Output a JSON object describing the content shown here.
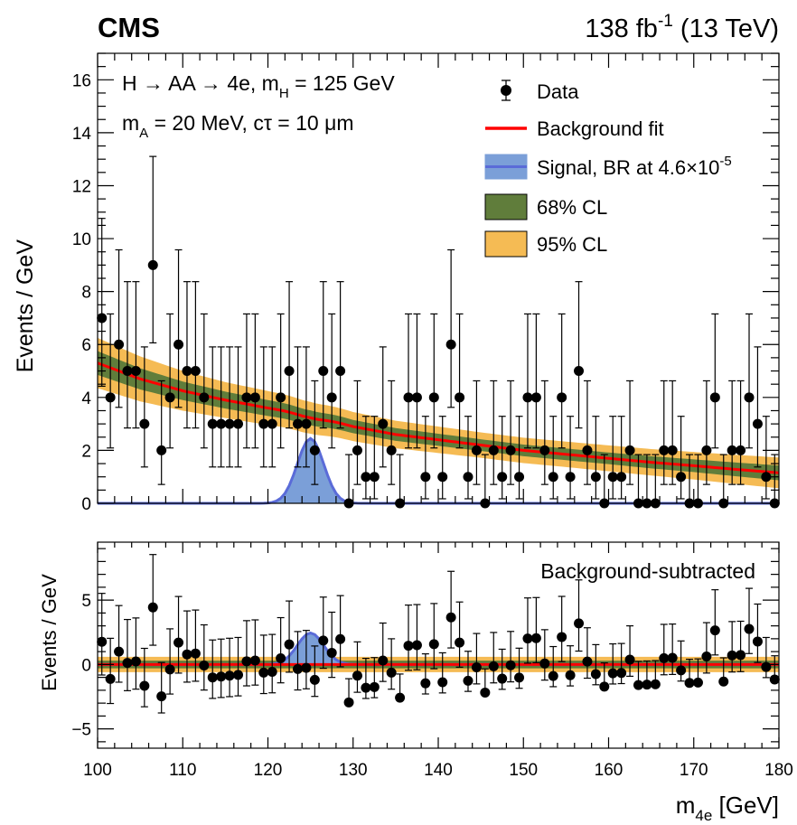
{
  "header": {
    "experiment": "CMS",
    "luminosity_main": "138 fb",
    "luminosity_sup": "-1",
    "energy": " (13 TeV)"
  },
  "annotations": {
    "process_main": "H → AA → 4e, m",
    "process_sub": "H",
    "process_tail": " = 125 GeV",
    "mass_main": "m",
    "mass_sub": "A",
    "mass_tail": " = 20 MeV, cτ = 10 μm"
  },
  "legend": {
    "data": "Data",
    "bkg": "Background fit",
    "signal_main": "Signal, BR at 4.6×10",
    "signal_sup": "-5",
    "cl68": "68% CL",
    "cl95": "95% CL"
  },
  "colors": {
    "data": "#000000",
    "background_fit": "#ff0000",
    "signal_line": "#5a6bd8",
    "signal_fill": "#7b9fd8",
    "cl68": "#607d3b",
    "cl95": "#f5bb54"
  },
  "chart_data": [
    {
      "type": "scatter",
      "panel": "main",
      "ylabel": "Events / GeV",
      "xlim": [
        100,
        180
      ],
      "ylim": [
        0,
        17
      ],
      "y_ticks": [
        0,
        2,
        4,
        6,
        8,
        10,
        12,
        14,
        16
      ],
      "x_ticks": [
        100,
        110,
        120,
        130,
        140,
        150,
        160,
        170,
        180
      ],
      "x_tick_labels_shown": false,
      "data": {
        "x": [
          100.5,
          101.5,
          102.5,
          103.5,
          104.5,
          105.5,
          106.5,
          107.5,
          108.5,
          109.5,
          110.5,
          111.5,
          112.5,
          113.5,
          114.5,
          115.5,
          116.5,
          117.5,
          118.5,
          119.5,
          120.5,
          121.5,
          122.5,
          123.5,
          124.5,
          125.5,
          126.5,
          127.5,
          128.5,
          129.5,
          130.5,
          131.5,
          132.5,
          133.5,
          134.5,
          135.5,
          136.5,
          137.5,
          138.5,
          139.5,
          140.5,
          141.5,
          142.5,
          143.5,
          144.5,
          145.5,
          146.5,
          147.5,
          148.5,
          149.5,
          150.5,
          151.5,
          152.5,
          153.5,
          154.5,
          155.5,
          156.5,
          157.5,
          158.5,
          159.5,
          160.5,
          161.5,
          162.5,
          163.5,
          164.5,
          165.5,
          166.5,
          167.5,
          168.5,
          169.5,
          170.5,
          171.5,
          172.5,
          173.5,
          174.5,
          175.5,
          176.5,
          177.5,
          178.5,
          179.5
        ],
        "y": [
          7,
          4,
          6,
          5,
          5,
          3,
          9,
          2,
          4,
          6,
          5,
          5,
          4,
          3,
          3,
          3,
          3,
          4,
          4,
          3,
          3,
          4,
          5,
          3,
          3,
          2,
          5,
          4,
          5,
          0,
          2,
          1,
          1,
          3,
          2,
          0,
          4,
          4,
          1,
          4,
          1,
          6,
          4,
          1,
          2,
          0,
          2,
          1,
          2,
          1,
          4,
          4,
          2,
          1,
          4,
          1,
          5,
          2,
          1,
          0,
          1,
          1,
          2,
          0,
          0,
          0,
          2,
          2,
          1,
          0,
          0,
          2,
          4,
          0,
          2,
          2,
          4,
          3,
          1,
          0
        ]
      },
      "background_fit": {
        "x": [
          100,
          105,
          110,
          115,
          120,
          125,
          130,
          135,
          140,
          145,
          150,
          155,
          160,
          165,
          170,
          175,
          180
        ],
        "y": [
          5.3,
          4.7,
          4.25,
          3.9,
          3.6,
          3.35,
          2.9,
          2.6,
          2.4,
          2.2,
          2.0,
          1.85,
          1.7,
          1.55,
          1.42,
          1.28,
          1.15
        ],
        "band68": [
          0.45,
          0.4,
          0.35,
          0.32,
          0.3,
          0.28,
          0.25,
          0.24,
          0.23,
          0.22,
          0.22,
          0.22,
          0.22,
          0.23,
          0.24,
          0.26,
          0.28
        ],
        "band95": [
          0.95,
          0.85,
          0.75,
          0.68,
          0.64,
          0.6,
          0.55,
          0.52,
          0.5,
          0.48,
          0.48,
          0.48,
          0.49,
          0.5,
          0.52,
          0.55,
          0.58
        ]
      },
      "signal": {
        "mean": 125,
        "sigma": 1.55,
        "peak": 2.45
      }
    },
    {
      "type": "scatter",
      "panel": "ratio",
      "title": "Background-subtracted",
      "ylabel": "Events / GeV",
      "xlabel": "m4e [GeV]",
      "xlabel_main": "m",
      "xlabel_sub": "4e",
      "xlabel_tail": " [GeV]",
      "xlim": [
        100,
        180
      ],
      "ylim": [
        -6.5,
        9.5
      ],
      "y_ticks": [
        -5,
        0,
        5
      ],
      "x_ticks": [
        100,
        110,
        120,
        130,
        140,
        150,
        160,
        170,
        180
      ],
      "band68_half": 0.3,
      "band95_half": 0.6
    }
  ]
}
